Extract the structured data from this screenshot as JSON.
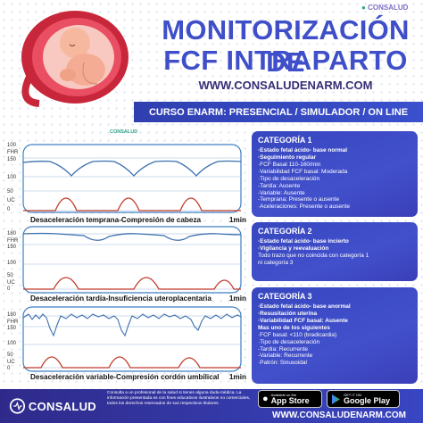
{
  "header": {
    "title_line1": "MONITORIZACIÓN DE",
    "title_line2": "FCF INTRAPARTO",
    "website": "WWW.CONSALUDENARM.COM",
    "course": "CURSO ENARM: PRESENCIAL / SIMULADOR / ON LINE",
    "brand": "CONSALUD"
  },
  "charts": [
    {
      "caption": "Desaceleración temprana-Compresión de cabeza",
      "time": "1min",
      "fhr_labels": [
        "100",
        "FHR",
        "150",
        "100"
      ],
      "uc_labels": [
        "50",
        "UC",
        "0"
      ],
      "brand": "CONSALUD"
    },
    {
      "caption": "Desaceleración tardía-Insuficiencia uteroplacentaria",
      "time": "1min",
      "fhr_labels": [
        "180",
        "FHR",
        "150"
      ],
      "uc_labels": [
        "100",
        "50",
        "UC",
        "0"
      ]
    },
    {
      "caption": "Desaceleración variable-Compresión cordón umbilical",
      "time": "1min",
      "fhr_labels": [
        "180",
        "FHR",
        "150"
      ],
      "uc_labels": [
        "100",
        "50",
        "UC",
        "0"
      ]
    }
  ],
  "categories": [
    {
      "title": "CATEGORÍA 1",
      "lines": [
        {
          "text": "·Estado fetal ácido- base normal",
          "bold": true
        },
        {
          "text": "·Seguimiento regular",
          "bold": true
        },
        {
          "text": "·FCF Basal 110-160/min",
          "bold": false
        },
        {
          "text": "·Variabilidad FCF basal: Moderada",
          "bold": false
        },
        {
          "text": "·Tipo de desaceleración",
          "bold": false
        },
        {
          "text": " -Tardía: Ausente",
          "bold": false
        },
        {
          "text": " -Variable: Ausente",
          "bold": false
        },
        {
          "text": " -Temprana: Presente o ausente",
          "bold": false
        },
        {
          "text": "·Aceleraciones: Presente o ausente",
          "bold": false
        }
      ]
    },
    {
      "title": "CATEGORÍA 2",
      "lines": [
        {
          "text": "·Estado fetal ácido- base incierto",
          "bold": true
        },
        {
          "text": "·Vigilancia y reevaluación",
          "bold": true
        },
        {
          "text": "Todo trazo que no coincida con categoría 1",
          "bold": false
        },
        {
          "text": "ni categoría 3",
          "bold": false
        }
      ]
    },
    {
      "title": "CATEGORÍA 3",
      "lines": [
        {
          "text": "·Estado fetal ácido- base anormal",
          "bold": true
        },
        {
          "text": "·Resusitación uterina",
          "bold": true
        },
        {
          "text": "·Variabilidad FCF basal: Ausente",
          "bold": true
        },
        {
          "text": " Mas uno de los siguientes",
          "bold": true
        },
        {
          "text": "·FCF basal: <110 (bradicardia)",
          "bold": false
        },
        {
          "text": "·Tipo de desaceleración",
          "bold": false
        },
        {
          "text": " -Tardía: Recurrente",
          "bold": false
        },
        {
          "text": " -Variable: Recurrente",
          "bold": false
        },
        {
          "text": "·Patrón: Sinusoidal",
          "bold": false
        }
      ]
    }
  ],
  "footer": {
    "brand": "CONSALUD",
    "disclaimer": "Consulta a un profesional de la salud si tienes alguna duda médica. La información presentada es con fines educativos ilustrativos no comerciales, todos los derechos reservados de sus respectivos titulares.",
    "appstore_small": "Available on the",
    "appstore_big": "App Store",
    "googleplay_small": "GET IT ON",
    "googleplay_big": "Google Play",
    "website": "WWW.CONSALUDENARM.COM"
  },
  "colors": {
    "primary_blue": "#3f4fc9",
    "dark_navy": "#352e76",
    "fhr_trace": "#3c6fae",
    "uc_trace": "#c0392b",
    "brand_green": "#2ea38b"
  }
}
